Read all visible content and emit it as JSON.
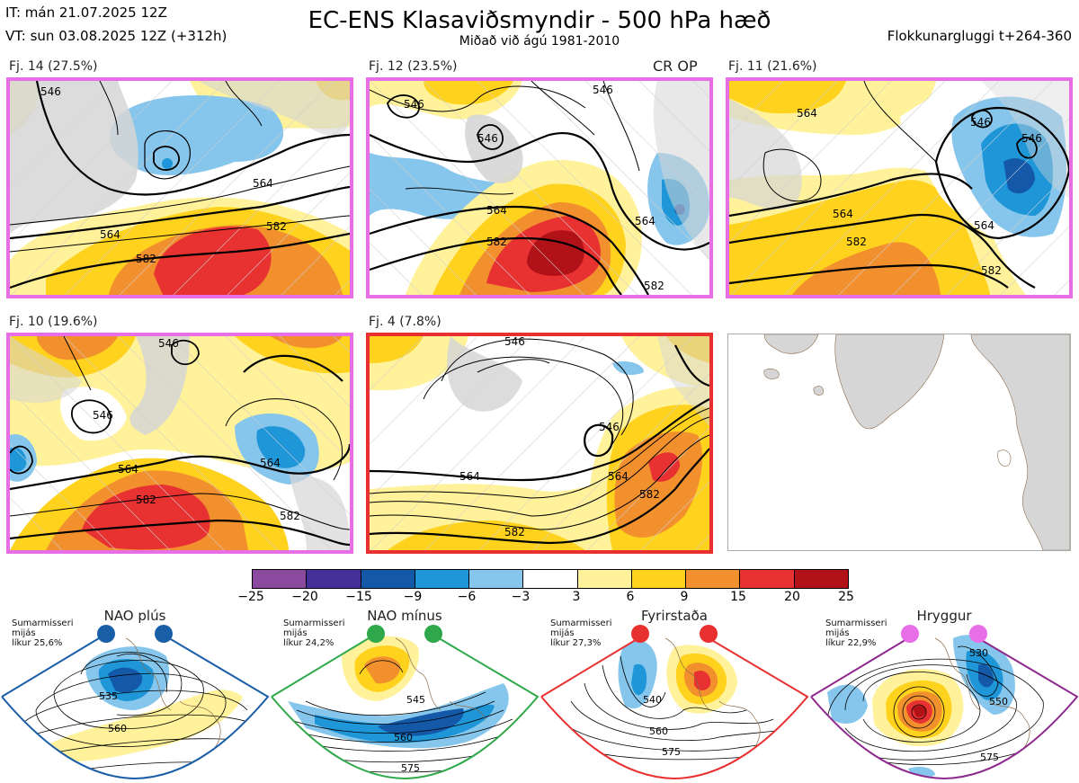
{
  "header": {
    "it_line": "IT: mán 21.07.2025 12Z",
    "vt_line": "VT: sun 03.08.2025 12Z  (+312h)",
    "title": "EC-ENS Klasaviðsmyndir - 500 hPa hæð",
    "subtitle": "Miðað við ágú 1981-2010",
    "window": "Flokkunargluggi t+264-360"
  },
  "panels": [
    {
      "label": "Fj. 14 (27.5%)",
      "border_color": "#e86ee8",
      "contours": [
        "546",
        "564",
        "564",
        "582",
        "582"
      ]
    },
    {
      "label": "Fj. 12 (23.5%)",
      "tag": "CR OP",
      "border_color": "#e86ee8",
      "contours": [
        "546",
        "546",
        "546",
        "564",
        "582",
        "564",
        "582"
      ]
    },
    {
      "label": "Fj. 11 (21.6%)",
      "border_color": "#e86ee8",
      "contours": [
        "564",
        "546",
        "546",
        "564",
        "582",
        "564",
        "582"
      ]
    },
    {
      "label": "Fj. 10 (19.6%)",
      "border_color": "#e86ee8",
      "contours": [
        "546",
        "546",
        "564",
        "564",
        "582",
        "582"
      ]
    },
    {
      "label": "Fj. 4 (7.8%)",
      "border_color": "#e83030",
      "contours": [
        "546",
        "546",
        "564",
        "564",
        "582",
        "582"
      ]
    }
  ],
  "colorbar": {
    "ticks": [
      "−25",
      "−20",
      "−15",
      "−9",
      "−6",
      "−3",
      "3",
      "6",
      "9",
      "15",
      "20",
      "25"
    ],
    "colors": [
      "#8b4a9e",
      "#45309a",
      "#1458a8",
      "#1e96d8",
      "#86c6ec",
      "#ffffff",
      "#fff29a",
      "#ffd21e",
      "#f2902e",
      "#e83232",
      "#b01218"
    ]
  },
  "regimes": [
    {
      "name": "NAO plús",
      "note": [
        "Sumarmisseri",
        "mijás",
        "líkur 25,6%"
      ],
      "color": "#1a5ea8",
      "contours": [
        "535",
        "560"
      ]
    },
    {
      "name": "NAO mínus",
      "note": [
        "Sumarmisseri",
        "mijás",
        "líkur 24,2%"
      ],
      "color": "#2ea84a",
      "contours": [
        "545",
        "560",
        "575"
      ]
    },
    {
      "name": "Fyrirstaða",
      "note": [
        "Sumarmisseri",
        "mijás",
        "líkur 27,3%"
      ],
      "color": "#e83030",
      "contours": [
        "540",
        "560",
        "575"
      ]
    },
    {
      "name": "Hryggur",
      "note": [
        "Sumarmisseri",
        "mijás",
        "líkur 22,9%"
      ],
      "color": "#e86ee8",
      "contours": [
        "530",
        "550",
        "575"
      ]
    }
  ]
}
